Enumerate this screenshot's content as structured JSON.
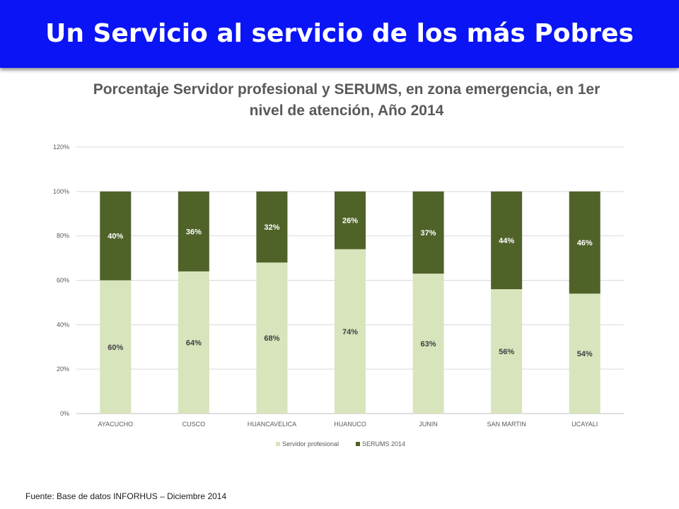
{
  "slide": {
    "title": "Un Servicio al servicio de los más Pobres",
    "footnote": "Fuente: Base de datos INFORHUS – Diciembre 2014"
  },
  "colors": {
    "banner": "#0a14f5",
    "servidor": "#d8e4bc",
    "serums": "#4f6228"
  },
  "chart_data": {
    "type": "bar",
    "stacked": true,
    "title_lines": [
      "Porcentaje Servidor profesional y SERUMS, en zona emergencia, en 1er",
      "nivel de atención, Año 2014"
    ],
    "categories": [
      "AYACUCHO",
      "CUSCO",
      "HUANCAVELICA",
      "HUANUCO",
      "JUNIN",
      "SAN MARTIN",
      "UCAYALI"
    ],
    "series": [
      {
        "name": "Servidor profesional",
        "values": [
          60,
          64,
          68,
          74,
          63,
          56,
          54
        ],
        "labels": [
          "60%",
          "64%",
          "68%",
          "74%",
          "63%",
          "56%",
          "54%"
        ]
      },
      {
        "name": "SERUMS 2014",
        "values": [
          40,
          36,
          32,
          26,
          37,
          44,
          46
        ],
        "labels": [
          "40%",
          "36%",
          "32%",
          "26%",
          "37%",
          "44%",
          "46%"
        ]
      }
    ],
    "y_ticks": [
      "0%",
      "20%",
      "40%",
      "60%",
      "80%",
      "100%",
      "120%"
    ],
    "ylim": [
      0,
      120
    ],
    "grid": true,
    "legend_position": "bottom"
  }
}
